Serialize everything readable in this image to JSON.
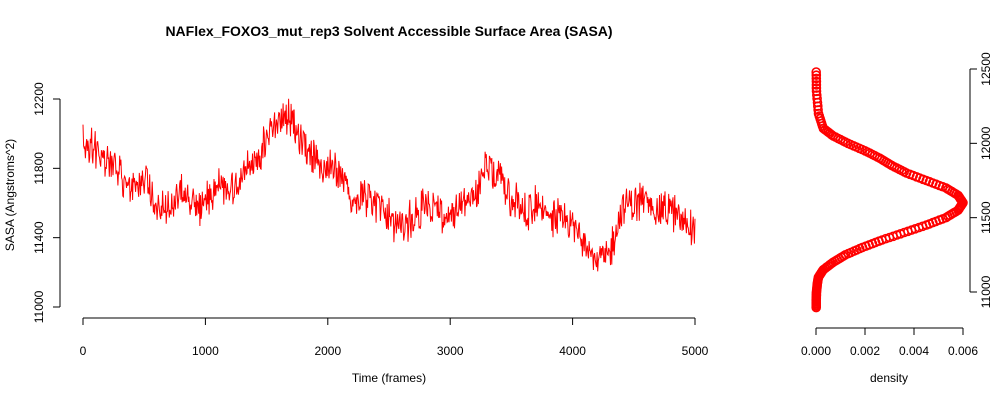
{
  "chart_data": [
    {
      "type": "line",
      "title": "NAFlex_FOXO3_mut_rep3 Solvent Accessible Surface Area (SASA)",
      "xlabel": "Time (frames)",
      "ylabel": "SASA (Angstroms^2)",
      "xlim": [
        0,
        5000
      ],
      "ylim": [
        10940,
        12370
      ],
      "x_ticks": [
        0,
        1000,
        2000,
        3000,
        4000,
        5000
      ],
      "y_ticks": [
        11000,
        11400,
        11800,
        12200
      ],
      "grid": false,
      "series": [
        {
          "color": "#ff0000",
          "note": "noisy time series; smooth trend below, amplitude ~±90",
          "x": [
            0,
            100,
            200,
            300,
            400,
            500,
            600,
            700,
            800,
            900,
            1000,
            1100,
            1200,
            1300,
            1400,
            1500,
            1600,
            1700,
            1800,
            1900,
            2000,
            2100,
            2200,
            2300,
            2400,
            2500,
            2600,
            2700,
            2800,
            2900,
            3000,
            3100,
            3200,
            3300,
            3400,
            3500,
            3600,
            3700,
            3800,
            3900,
            4000,
            4100,
            4200,
            4300,
            4400,
            4500,
            4600,
            4700,
            4800,
            4900,
            5000
          ],
          "values": [
            11950,
            11920,
            11840,
            11760,
            11700,
            11740,
            11550,
            11600,
            11680,
            11560,
            11600,
            11720,
            11680,
            11760,
            11820,
            11950,
            12050,
            12100,
            11940,
            11860,
            11800,
            11760,
            11620,
            11640,
            11600,
            11520,
            11460,
            11520,
            11600,
            11560,
            11480,
            11600,
            11620,
            11820,
            11760,
            11620,
            11560,
            11600,
            11540,
            11500,
            11460,
            11400,
            11260,
            11300,
            11560,
            11600,
            11620,
            11560,
            11560,
            11500,
            11460
          ]
        }
      ]
    },
    {
      "type": "line",
      "title": "",
      "xlabel": "density",
      "ylabel": "",
      "xlim": [
        0,
        0.006
      ],
      "ylim": [
        10880,
        12500
      ],
      "x_ticks": [
        "0.000",
        "0.002",
        "0.004",
        "0.006"
      ],
      "y_ticks": [
        11000,
        11500,
        12000,
        12500
      ],
      "y_axis_side": "right",
      "grid": false,
      "series": [
        {
          "color": "#ff0000",
          "marker": "circle",
          "x": [
            1e-05,
            1e-05,
            2e-05,
            5e-05,
            0.0001,
            0.0003,
            0.0007,
            0.0012,
            0.0019,
            0.0027,
            0.0036,
            0.0045,
            0.0053,
            0.0058,
            0.006,
            0.0058,
            0.0053,
            0.0045,
            0.0037,
            0.0031,
            0.0026,
            0.002,
            0.0013,
            0.0007,
            0.0003,
            0.0001,
            2e-05,
            1e-05
          ],
          "y": [
            10895,
            10950,
            11000,
            11050,
            11100,
            11150,
            11200,
            11250,
            11300,
            11350,
            11400,
            11450,
            11500,
            11550,
            11600,
            11650,
            11700,
            11750,
            11800,
            11850,
            11900,
            11950,
            12000,
            12050,
            12100,
            12200,
            12350,
            12480
          ]
        }
      ]
    }
  ]
}
